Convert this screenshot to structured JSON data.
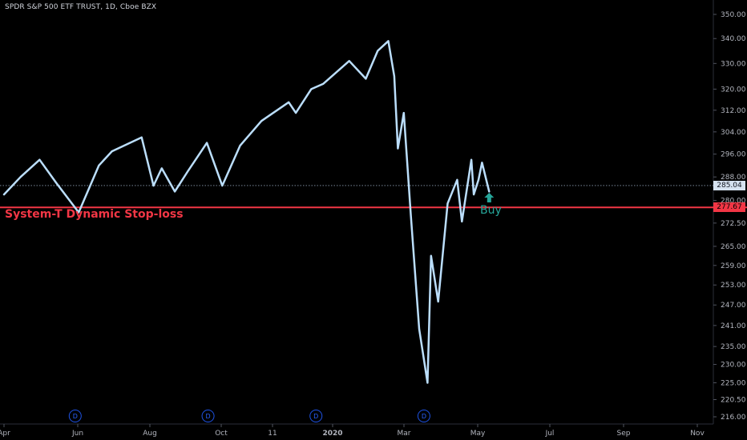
{
  "header": {
    "title": "SPDR S&P 500 ETF TRUST, 1D, Cboe BZX"
  },
  "annotations": {
    "stop_label": "System-T Dynamic Stop-loss",
    "buy_label": "Buy"
  },
  "badges": {
    "last_price": "285.04",
    "stop_price": "277.67"
  },
  "colors": {
    "line": "#bbdefb",
    "stop": "#f23645",
    "buy": "#26a69a",
    "badge": "#1e53e5"
  },
  "chart_data": {
    "type": "line",
    "title": "SPDR S&P 500 ETF TRUST, 1D, Cboe BZX",
    "xlabel": "",
    "ylabel": "",
    "x_tick_labels": [
      "Apr",
      "Jun",
      "Aug",
      "Oct",
      "11",
      "2020",
      "Mar",
      "May",
      "Jul",
      "Sep",
      "Nov"
    ],
    "y_tick_labels": [
      "350.00",
      "340.00",
      "330.00",
      "320.00",
      "312.00",
      "304.00",
      "296.00",
      "288.00",
      "280.00",
      "272.50",
      "265.00",
      "259.00",
      "253.00",
      "247.00",
      "241.00",
      "235.00",
      "230.00",
      "225.00",
      "220.50",
      "216.00"
    ],
    "y_scale": "log",
    "ylim": [
      214,
      355
    ],
    "last_price": 285.04,
    "stop_loss": 277.67,
    "series": [
      {
        "x": [
          "2019-04-01",
          "2019-04-15",
          "2019-05-01",
          "2019-05-15",
          "2019-06-03",
          "2019-06-20",
          "2019-07-01",
          "2019-07-26",
          "2019-08-05",
          "2019-08-12",
          "2019-08-23",
          "2019-09-03",
          "2019-09-19",
          "2019-10-02",
          "2019-10-17",
          "2019-11-04",
          "2019-11-27",
          "2019-12-03",
          "2019-12-16",
          "2019-12-26",
          "2020-01-17",
          "2020-01-31",
          "2020-02-10",
          "2020-02-19",
          "2020-02-24",
          "2020-02-27",
          "2020-03-03",
          "2020-03-09",
          "2020-03-16",
          "2020-03-23",
          "2020-03-26",
          "2020-04-01",
          "2020-04-09",
          "2020-04-17",
          "2020-04-21",
          "2020-04-29",
          "2020-05-01",
          "2020-05-05",
          "2020-05-08",
          "2020-05-14"
        ],
        "values": [
          282,
          288,
          294,
          286,
          276,
          292,
          297,
          302,
          285,
          291,
          283,
          290,
          300,
          285,
          299,
          308,
          315,
          311,
          320,
          322,
          331,
          324,
          335,
          339,
          325,
          298,
          311,
          275,
          240,
          225,
          262,
          248,
          279,
          287,
          273,
          294,
          282,
          287,
          293,
          283
        ]
      }
    ],
    "markers": [
      {
        "type": "buy",
        "x": "2020-05-14",
        "label": "Buy"
      }
    ],
    "event_markers": [
      {
        "x": "2019-05-31",
        "label": "D"
      },
      {
        "x": "2019-09-20",
        "label": "D"
      },
      {
        "x": "2019-12-20",
        "label": "D"
      },
      {
        "x": "2020-03-20",
        "label": "D"
      }
    ]
  }
}
